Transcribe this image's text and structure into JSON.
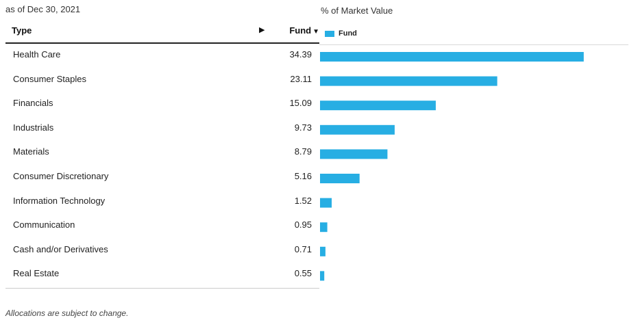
{
  "as_of": "as of Dec 30, 2021",
  "chart_heading": "% of Market Value",
  "table": {
    "col_type": "Type",
    "expand_icon": "right-triangle-icon",
    "col_fund": "Fund",
    "sort_icon": "down-triangle-icon"
  },
  "legend": {
    "label": "Fund"
  },
  "colors": {
    "bar": "#27AEE3"
  },
  "footnote": "Allocations are subject to change.",
  "chart_data": {
    "type": "bar",
    "orientation": "horizontal",
    "categories": [
      "Health Care",
      "Consumer Staples",
      "Financials",
      "Industrials",
      "Materials",
      "Consumer Discretionary",
      "Information Technology",
      "Communication",
      "Cash and/or Derivatives",
      "Real Estate"
    ],
    "series": [
      {
        "name": "Fund",
        "values": [
          34.39,
          23.11,
          15.09,
          9.73,
          8.79,
          5.16,
          1.52,
          0.95,
          0.71,
          0.55
        ]
      }
    ],
    "value_labels": [
      "34.39",
      "23.11",
      "15.09",
      "9.73",
      "8.79",
      "5.16",
      "1.52",
      "0.95",
      "0.71",
      "0.55"
    ],
    "title": "% of Market Value",
    "xlim": [
      0,
      40
    ],
    "legend": "top-left",
    "grid": false
  }
}
